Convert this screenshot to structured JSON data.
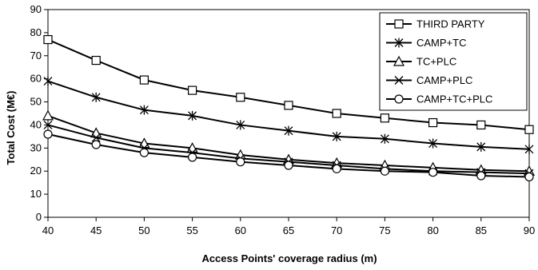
{
  "chart_data": {
    "type": "line",
    "title": "",
    "xlabel": "Access Points' coverage radius (m)",
    "ylabel": "Total Cost (M€)",
    "x": [
      40,
      45,
      50,
      55,
      60,
      65,
      70,
      75,
      80,
      85,
      90
    ],
    "xlim": [
      40,
      90
    ],
    "ylim": [
      0,
      90
    ],
    "x_ticks": [
      40,
      45,
      50,
      55,
      60,
      65,
      70,
      75,
      80,
      85,
      90
    ],
    "y_ticks": [
      0,
      10,
      20,
      30,
      40,
      50,
      60,
      70,
      80,
      90
    ],
    "grid": false,
    "legend_position": "top-right",
    "series": [
      {
        "name": "THIRD PARTY",
        "marker": "square",
        "values": [
          77,
          68,
          59.5,
          55,
          52,
          48.5,
          45,
          43,
          41,
          40,
          38
        ]
      },
      {
        "name": "CAMP+TC",
        "marker": "asterisk",
        "values": [
          59,
          52,
          46.5,
          44,
          40,
          37.5,
          35,
          34,
          32,
          30.5,
          29.5
        ]
      },
      {
        "name": "TC+PLC",
        "marker": "triangle",
        "values": [
          44,
          36.5,
          32,
          30,
          27,
          25,
          23.5,
          22.5,
          21.5,
          20.5,
          20
        ]
      },
      {
        "name": "CAMP+PLC",
        "marker": "x",
        "values": [
          40,
          34.5,
          30,
          28,
          25.5,
          24,
          22.5,
          21,
          20,
          19.5,
          19
        ]
      },
      {
        "name": "CAMP+TC+PLC",
        "marker": "circle",
        "values": [
          36,
          31.5,
          28,
          26,
          24,
          22.5,
          21,
          20,
          19.5,
          18,
          17.5
        ]
      }
    ]
  }
}
